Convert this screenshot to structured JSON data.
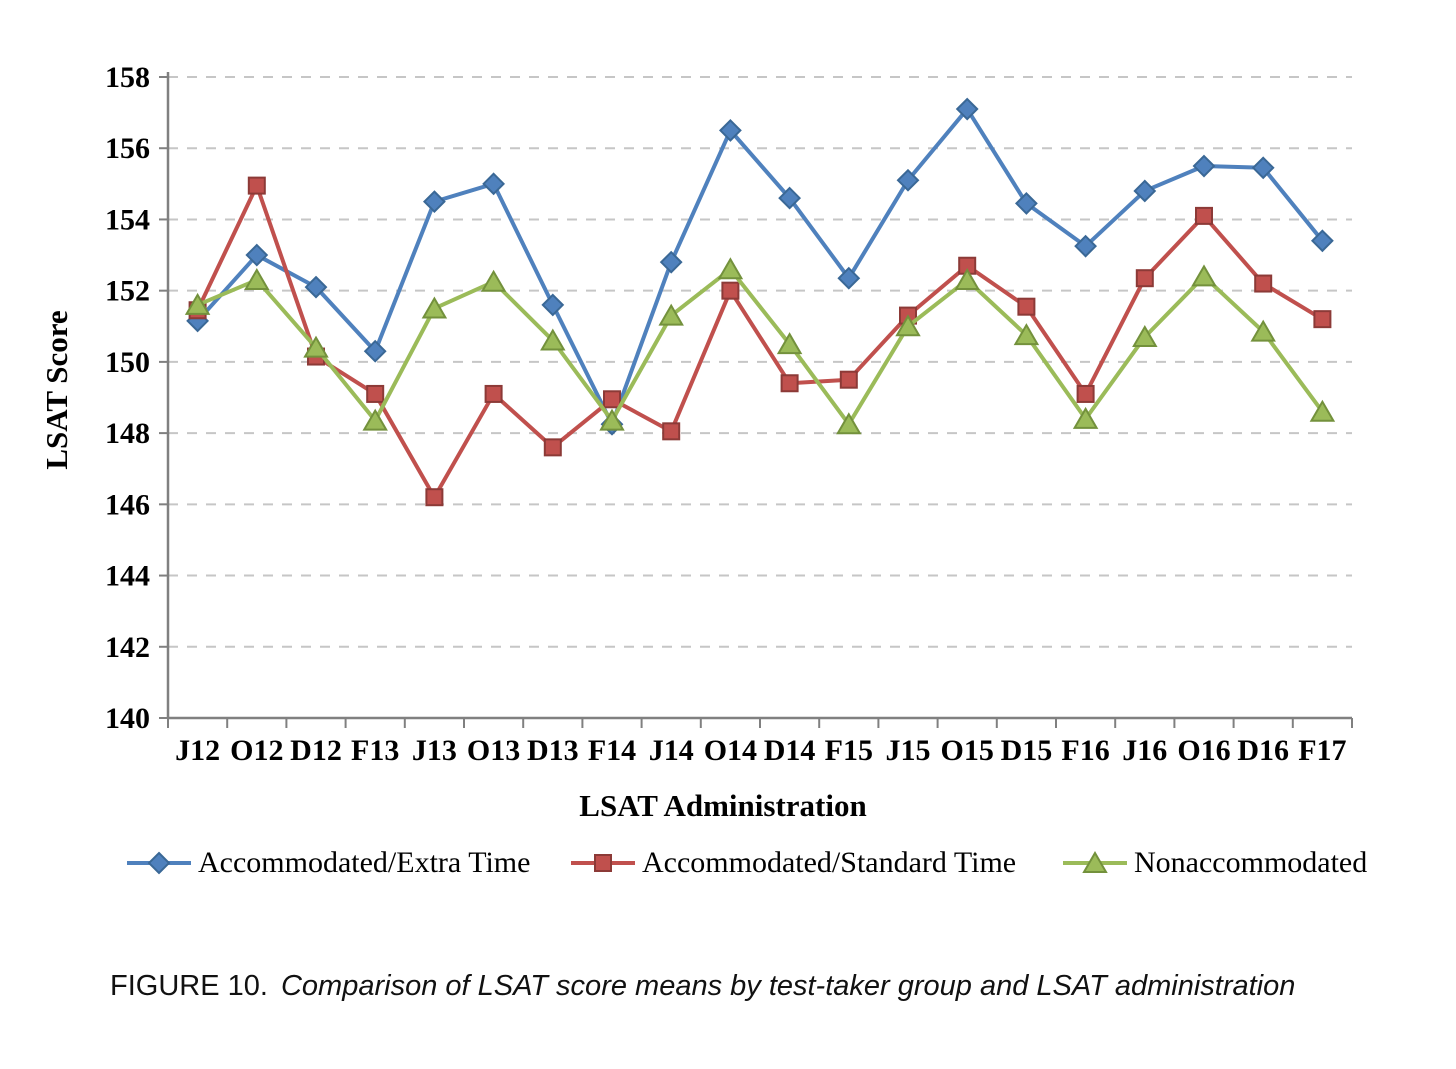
{
  "figure": {
    "caption_prefix": "FIGURE 10.",
    "caption_italic": "Comparison of LSAT score means by test-taker group and LSAT administration"
  },
  "chart_data": {
    "type": "line",
    "title": "",
    "xlabel": "LSAT Administration",
    "ylabel": "LSAT Score",
    "ylim": [
      140,
      158
    ],
    "ytick_step": 2,
    "yticks": [
      140,
      142,
      144,
      146,
      148,
      150,
      152,
      154,
      156,
      158
    ],
    "grid": "horizontal-dashed",
    "legend_position": "bottom",
    "categories": [
      "J12",
      "O12",
      "D12",
      "F13",
      "J13",
      "O13",
      "D13",
      "F14",
      "J14",
      "O14",
      "D14",
      "F15",
      "J15",
      "O15",
      "D15",
      "F16",
      "J16",
      "O16",
      "D16",
      "F17"
    ],
    "series": [
      {
        "name": "Accommodated/Extra Time",
        "marker": "diamond",
        "color": "#4F81BD",
        "border": "#3A6896",
        "values": [
          151.15,
          153.0,
          152.1,
          150.3,
          154.5,
          155.0,
          151.6,
          148.25,
          152.8,
          156.5,
          154.6,
          152.35,
          155.1,
          157.1,
          154.45,
          153.25,
          154.8,
          155.5,
          155.45,
          153.4
        ]
      },
      {
        "name": "Accommodated/Standard Time",
        "marker": "square",
        "color": "#C0504D",
        "border": "#8C3A37",
        "values": [
          151.45,
          154.95,
          150.15,
          149.1,
          146.2,
          149.1,
          147.6,
          148.95,
          148.05,
          152.0,
          149.4,
          149.5,
          151.3,
          152.7,
          151.55,
          149.1,
          152.35,
          154.1,
          152.2,
          151.2
        ]
      },
      {
        "name": "Nonaccommodated",
        "marker": "triangle",
        "color": "#9BBB59",
        "border": "#73913C",
        "values": [
          151.6,
          152.3,
          150.4,
          148.35,
          151.5,
          152.25,
          150.6,
          148.35,
          151.3,
          152.6,
          150.5,
          148.25,
          151.0,
          152.3,
          150.75,
          148.4,
          150.7,
          152.4,
          150.85,
          148.6
        ]
      }
    ]
  },
  "style_colors": {
    "gridline": "#C6C6C6",
    "axis": "#808080",
    "background": "#FFFFFF"
  }
}
